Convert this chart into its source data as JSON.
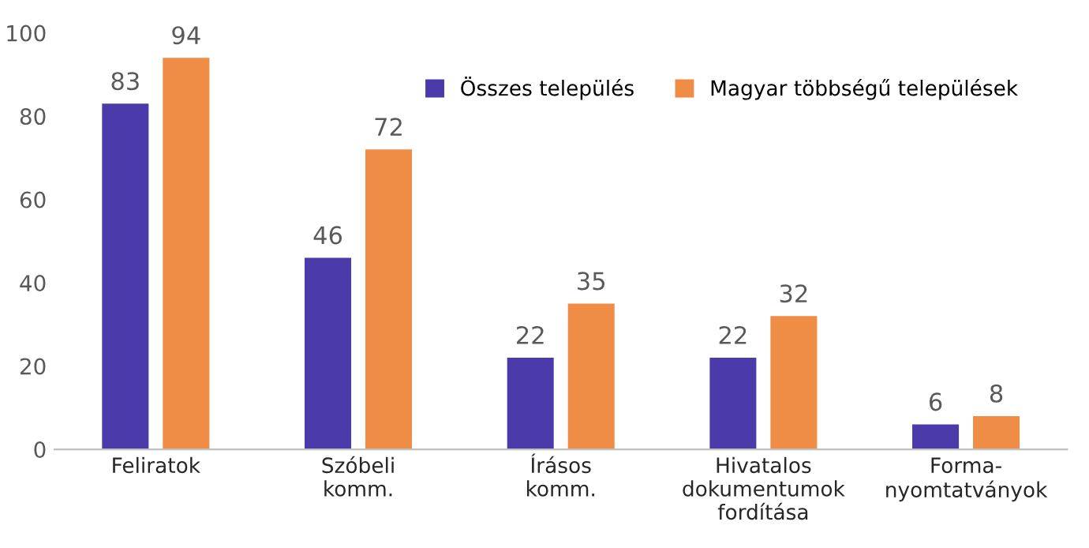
{
  "chart_data": {
    "type": "bar",
    "categories": [
      "Feliratok",
      "Szóbeli\nkomm.",
      "Írásos\nkomm.",
      "Hivatalos\ndokumentumok\nfordítása",
      "Forma-\nnyomtatványok"
    ],
    "series": [
      {
        "name": "Összes település",
        "color": "#4a3aaa",
        "values": [
          83,
          46,
          22,
          22,
          6
        ]
      },
      {
        "name": "Magyar többségű települések",
        "color": "#ef8c45",
        "values": [
          94,
          72,
          35,
          32,
          8
        ]
      }
    ],
    "ylim": [
      0,
      100
    ],
    "yticks": [
      0,
      20,
      40,
      60,
      80,
      100
    ],
    "grid": false,
    "legend": "top right",
    "data_labels": true
  }
}
